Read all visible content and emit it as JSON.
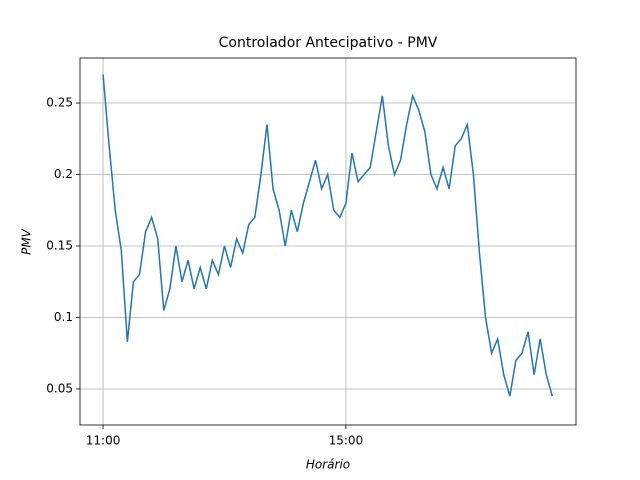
{
  "chart_data": {
    "type": "line",
    "title": "Controlador Antecipativo - PMV",
    "x_label": "Horário",
    "y_label": "PMV",
    "x": [
      11.0,
      11.1,
      11.2,
      11.3,
      11.4,
      11.5,
      11.6,
      11.7,
      11.8,
      11.9,
      12.0,
      12.1,
      12.2,
      12.3,
      12.4,
      12.5,
      12.6,
      12.7,
      12.8,
      12.9,
      13.0,
      13.1,
      13.2,
      13.3,
      13.4,
      13.5,
      13.6,
      13.7,
      13.8,
      13.9,
      14.0,
      14.1,
      14.2,
      14.3,
      14.4,
      14.5,
      14.6,
      14.7,
      14.8,
      14.9,
      15.0,
      15.1,
      15.2,
      15.3,
      15.4,
      15.5,
      15.6,
      15.7,
      15.8,
      15.9,
      16.0,
      16.1,
      16.2,
      16.3,
      16.4,
      16.5,
      16.6,
      16.7,
      16.8,
      16.9,
      17.0,
      17.1,
      17.2,
      17.3,
      17.4,
      17.5,
      17.6,
      17.7,
      17.8,
      17.9,
      18.0,
      18.1,
      18.2,
      18.3,
      18.4
    ],
    "series": [
      {
        "name": "PMV",
        "color": "#1f77b4",
        "values": [
          0.27,
          0.22,
          0.175,
          0.147,
          0.083,
          0.125,
          0.13,
          0.16,
          0.17,
          0.155,
          0.105,
          0.12,
          0.15,
          0.125,
          0.14,
          0.12,
          0.135,
          0.12,
          0.14,
          0.13,
          0.15,
          0.135,
          0.155,
          0.145,
          0.165,
          0.17,
          0.2,
          0.235,
          0.19,
          0.175,
          0.15,
          0.175,
          0.16,
          0.18,
          0.195,
          0.21,
          0.19,
          0.2,
          0.175,
          0.17,
          0.18,
          0.215,
          0.195,
          0.2,
          0.205,
          0.23,
          0.255,
          0.22,
          0.2,
          0.21,
          0.235,
          0.255,
          0.245,
          0.23,
          0.2,
          0.19,
          0.205,
          0.19,
          0.22,
          0.225,
          0.235,
          0.2,
          0.145,
          0.1,
          0.075,
          0.085,
          0.06,
          0.045,
          0.07,
          0.075,
          0.09,
          0.06,
          0.085,
          0.06,
          0.045
        ]
      }
    ],
    "xlim": [
      10.62,
      18.79
    ],
    "xticks": [
      {
        "value": 11,
        "label": "11:00"
      },
      {
        "value": 15,
        "label": "15:00"
      }
    ],
    "ylim": [
      0.0248,
      0.2815
    ],
    "yticks": [
      0.05,
      0.1,
      0.15,
      0.2,
      0.25
    ],
    "grid": true
  }
}
